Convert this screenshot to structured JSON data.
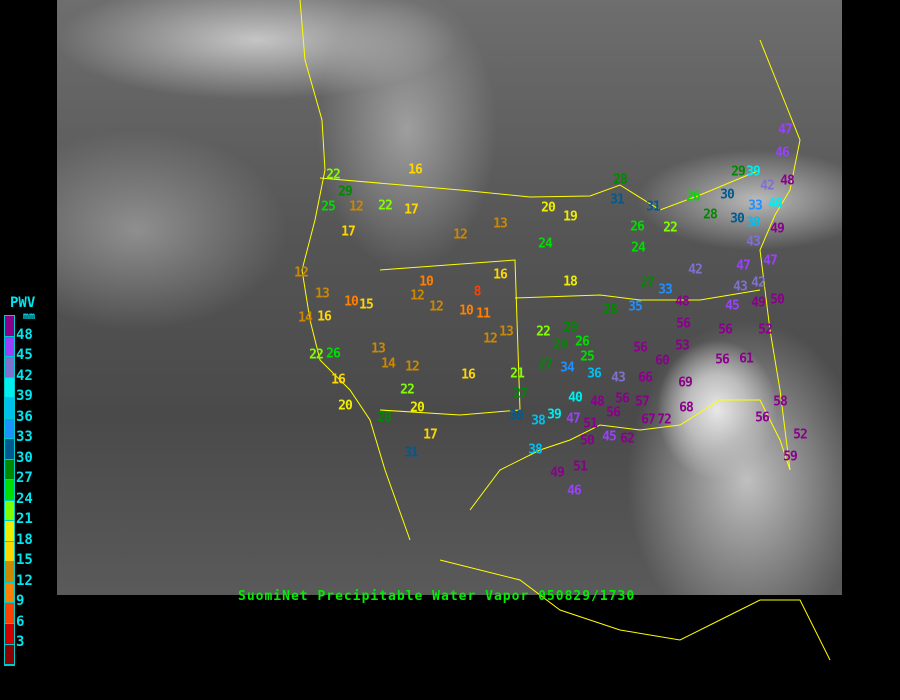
{
  "caption": "SuomiNet Precipitable Water Vapor 050829/1730",
  "legend": {
    "title": "PWV",
    "unit": "mm",
    "labels": [
      "48",
      "45",
      "42",
      "39",
      "36",
      "33",
      "30",
      "27",
      "24",
      "21",
      "18",
      "15",
      "12",
      "9",
      "6",
      "3"
    ],
    "colors": [
      "#8b008b",
      "#9a40ff",
      "#8070d0",
      "#00eeee",
      "#00bfef",
      "#1e90ff",
      "#005a90",
      "#008800",
      "#00dd00",
      "#80ff00",
      "#eeee00",
      "#ffd700",
      "#cc8800",
      "#ff8000",
      "#ff4000",
      "#d00000",
      "#8b0000"
    ]
  },
  "colors": {
    "boundaries": "#ffff00",
    "caption": "#00ee00",
    "legend_text": "#00e5ee"
  },
  "stations": [
    16,
    22,
    29,
    25,
    12,
    22,
    17,
    17,
    12,
    13,
    20,
    19,
    24,
    16,
    18,
    12,
    13,
    16,
    10,
    15,
    14,
    10,
    12,
    12,
    8,
    11,
    10,
    12,
    13,
    22,
    26,
    16,
    13,
    14,
    12,
    20,
    22,
    20,
    17,
    28,
    16,
    31,
    22,
    29,
    26,
    29,
    25,
    27,
    34,
    21,
    27,
    30,
    38,
    39,
    40,
    48,
    51,
    50,
    47,
    45,
    56,
    62,
    56,
    67,
    72,
    68,
    57,
    66,
    69,
    56,
    60,
    53,
    56,
    48,
    38,
    49,
    51,
    46,
    28,
    35,
    36,
    43,
    28,
    31,
    31,
    26,
    22,
    24,
    27,
    33,
    26,
    30,
    30,
    28,
    29,
    39,
    42,
    47,
    46,
    33,
    40,
    48,
    49,
    38,
    43,
    47,
    42,
    43,
    42,
    45,
    47,
    50,
    49,
    56,
    52,
    56,
    61,
    56,
    58,
    52,
    59
  ]
}
